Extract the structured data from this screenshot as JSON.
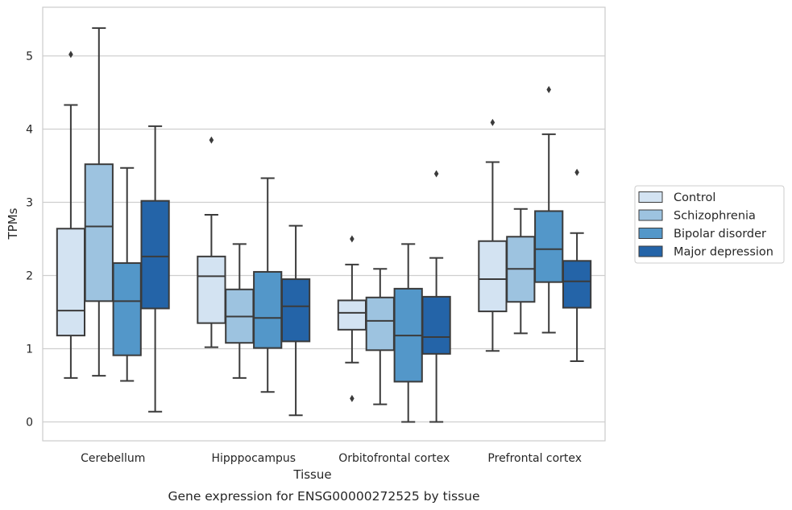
{
  "chart_data": {
    "type": "box",
    "caption": "Gene expression for ENSG00000272525 by tissue",
    "xlabel": "Tissue",
    "ylabel": "TPMs",
    "ylim": [
      -0.25,
      5.65
    ],
    "yticks": [
      0,
      1,
      2,
      3,
      4,
      5
    ],
    "grid": "horizontal",
    "legend_position": "right",
    "categories": [
      "Cerebellum",
      "Hipppocampus",
      "Orbitofrontal cortex",
      "Prefrontal cortex"
    ],
    "series": [
      {
        "name": "Control",
        "color": "#d3e3f2",
        "boxes": [
          {
            "whislo": 0.6,
            "q1": 1.18,
            "med": 1.52,
            "q3": 2.64,
            "whishi": 4.33,
            "fliers": [
              5.02
            ]
          },
          {
            "whislo": 1.02,
            "q1": 1.35,
            "med": 1.99,
            "q3": 2.26,
            "whishi": 2.83,
            "fliers": [
              3.85
            ]
          },
          {
            "whislo": 0.81,
            "q1": 1.26,
            "med": 1.49,
            "q3": 1.66,
            "whishi": 2.15,
            "fliers": [
              2.5,
              0.32
            ]
          },
          {
            "whislo": 0.97,
            "q1": 1.51,
            "med": 1.95,
            "q3": 2.47,
            "whishi": 3.55,
            "fliers": [
              4.09
            ]
          }
        ]
      },
      {
        "name": "Schizophrenia",
        "color": "#9dc3e0",
        "boxes": [
          {
            "whislo": 0.63,
            "q1": 1.65,
            "med": 2.67,
            "q3": 3.52,
            "whishi": 5.38,
            "fliers": []
          },
          {
            "whislo": 0.6,
            "q1": 1.08,
            "med": 1.44,
            "q3": 1.81,
            "whishi": 2.43,
            "fliers": []
          },
          {
            "whislo": 0.24,
            "q1": 0.98,
            "med": 1.38,
            "q3": 1.7,
            "whishi": 2.09,
            "fliers": []
          },
          {
            "whislo": 1.21,
            "q1": 1.64,
            "med": 2.09,
            "q3": 2.53,
            "whishi": 2.91,
            "fliers": []
          }
        ]
      },
      {
        "name": "Bipolar disorder",
        "color": "#5397c9",
        "boxes": [
          {
            "whislo": 0.56,
            "q1": 0.91,
            "med": 1.65,
            "q3": 2.17,
            "whishi": 3.47,
            "fliers": []
          },
          {
            "whislo": 0.41,
            "q1": 1.01,
            "med": 1.42,
            "q3": 2.05,
            "whishi": 3.33,
            "fliers": []
          },
          {
            "whislo": 0.0,
            "q1": 0.55,
            "med": 1.18,
            "q3": 1.82,
            "whishi": 2.43,
            "fliers": []
          },
          {
            "whislo": 1.22,
            "q1": 1.91,
            "med": 2.36,
            "q3": 2.88,
            "whishi": 3.93,
            "fliers": [
              4.54
            ]
          }
        ]
      },
      {
        "name": "Major depression",
        "color": "#2464a8",
        "boxes": [
          {
            "whislo": 0.14,
            "q1": 1.55,
            "med": 2.26,
            "q3": 3.02,
            "whishi": 4.04,
            "fliers": []
          },
          {
            "whislo": 0.09,
            "q1": 1.1,
            "med": 1.58,
            "q3": 1.95,
            "whishi": 2.68,
            "fliers": []
          },
          {
            "whislo": 0.0,
            "q1": 0.93,
            "med": 1.16,
            "q3": 1.71,
            "whishi": 2.24,
            "fliers": [
              3.39
            ]
          },
          {
            "whislo": 0.83,
            "q1": 1.56,
            "med": 1.92,
            "q3": 2.2,
            "whishi": 2.58,
            "fliers": [
              3.41
            ]
          }
        ]
      }
    ]
  }
}
